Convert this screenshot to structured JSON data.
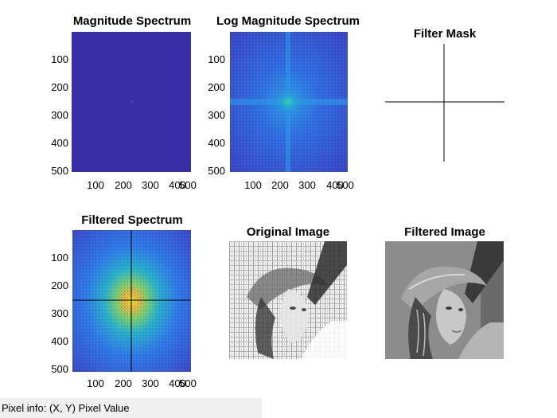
{
  "panels": {
    "magnitude": {
      "title": "Magnitude Spectrum"
    },
    "log_magnitude": {
      "title": "Log Magnitude Spectrum"
    },
    "filter_mask": {
      "title": "Filter Mask"
    },
    "filtered_spectrum": {
      "title": "Filtered Spectrum"
    },
    "original": {
      "title": "Original Image"
    },
    "filtered_image": {
      "title": "Filtered Image"
    }
  },
  "axis_ticks": {
    "y": [
      "100",
      "200",
      "300",
      "400",
      "500"
    ],
    "x": [
      "100",
      "200",
      "300",
      "400",
      "500"
    ]
  },
  "status_bar": {
    "text": "Pixel info: (X, Y)  Pixel Value"
  },
  "colors": {
    "spectrum_dark": "#3a2ea3",
    "spectrum_mid": "#2f6fe0",
    "spectrum_peak": "#f2e41a",
    "mask_line": "#000000",
    "status_bg": "#f0f0f0"
  }
}
